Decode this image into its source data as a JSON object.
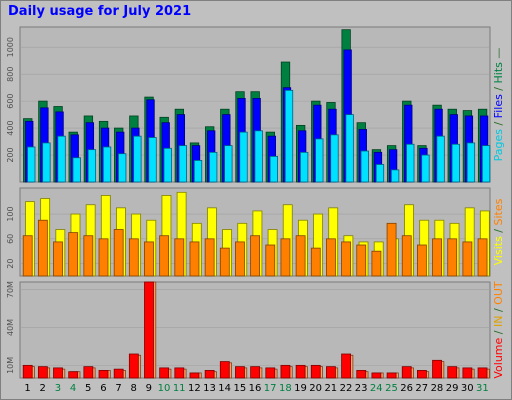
{
  "title": "Daily usage for July 2021",
  "colors": {
    "background": "#c0c0c0",
    "plot_background": "#b8b8b8",
    "hits": "#008040",
    "files": "#0000ff",
    "pages": "#00e0ff",
    "visits": "#ffff00",
    "sites": "#ff8000",
    "kbytes_in": "#ff0000",
    "kbytes_out": "#ffa060",
    "weekday_label": "#000000",
    "weekend_label": "#008040",
    "volume_label": "#ff0000",
    "in_label": "#e0a000",
    "out_label": "#ff8000"
  },
  "chart_data": [
    {
      "type": "bar",
      "title": "",
      "ylabel_parts": [
        {
          "text": "Pages",
          "color": "#00c8e0"
        },
        {
          "text": " / ",
          "color": "#2a6e2a"
        },
        {
          "text": "Files",
          "color": "#0000ff"
        },
        {
          "text": " / ",
          "color": "#2a6e2a"
        },
        {
          "text": "Hits",
          "color": "#008040"
        },
        {
          "text": " —",
          "color": "#2a6e2a"
        }
      ],
      "categories": [
        "1",
        "2",
        "3",
        "4",
        "5",
        "6",
        "7",
        "8",
        "9",
        "10",
        "11",
        "12",
        "13",
        "14",
        "15",
        "16",
        "17",
        "18",
        "19",
        "20",
        "21",
        "22",
        "23",
        "24",
        "25",
        "26",
        "27",
        "28",
        "29",
        "30",
        "31"
      ],
      "ylim": [
        0,
        1150
      ],
      "y_ticks": [
        200,
        400,
        600,
        800,
        1000
      ],
      "series": [
        {
          "name": "Hits",
          "values": [
            470,
            600,
            560,
            370,
            490,
            450,
            400,
            490,
            630,
            480,
            540,
            290,
            410,
            540,
            670,
            670,
            370,
            890,
            420,
            600,
            590,
            1130,
            440,
            240,
            270,
            600,
            270,
            570,
            540,
            530,
            540
          ]
        },
        {
          "name": "Files",
          "values": [
            450,
            550,
            520,
            350,
            440,
            400,
            370,
            400,
            610,
            440,
            500,
            270,
            380,
            500,
            620,
            620,
            340,
            700,
            380,
            570,
            540,
            980,
            390,
            220,
            240,
            570,
            250,
            540,
            500,
            490,
            490
          ]
        },
        {
          "name": "Pages",
          "values": [
            260,
            290,
            340,
            180,
            240,
            260,
            210,
            340,
            330,
            250,
            270,
            160,
            220,
            270,
            370,
            380,
            190,
            680,
            220,
            320,
            350,
            500,
            230,
            130,
            90,
            280,
            200,
            340,
            280,
            290,
            270
          ]
        }
      ]
    },
    {
      "type": "bar",
      "title": "",
      "ylabel_parts": [
        {
          "text": "Visits",
          "color": "#ffff00"
        },
        {
          "text": " / ",
          "color": "#2a6e2a"
        },
        {
          "text": "Sites",
          "color": "#ff8000"
        }
      ],
      "categories": [
        "1",
        "2",
        "3",
        "4",
        "5",
        "6",
        "7",
        "8",
        "9",
        "10",
        "11",
        "12",
        "13",
        "14",
        "15",
        "16",
        "17",
        "18",
        "19",
        "20",
        "21",
        "22",
        "23",
        "24",
        "25",
        "26",
        "27",
        "28",
        "29",
        "30",
        "31"
      ],
      "ylim": [
        0,
        142
      ],
      "y_ticks": [
        20,
        60,
        100
      ],
      "series": [
        {
          "name": "Visits",
          "values": [
            120,
            125,
            75,
            100,
            115,
            130,
            110,
            100,
            90,
            130,
            135,
            85,
            110,
            75,
            85,
            105,
            75,
            115,
            90,
            100,
            110,
            65,
            55,
            55,
            60,
            115,
            90,
            90,
            85,
            110,
            105
          ]
        },
        {
          "name": "Sites",
          "values": [
            65,
            90,
            55,
            70,
            65,
            60,
            75,
            60,
            55,
            65,
            60,
            55,
            60,
            45,
            55,
            65,
            50,
            60,
            65,
            45,
            60,
            55,
            50,
            40,
            85,
            65,
            50,
            60,
            60,
            55,
            60
          ]
        }
      ]
    },
    {
      "type": "bar",
      "title": "",
      "ylabel_parts": [
        {
          "text": "Volume",
          "color": "#ff0000"
        },
        {
          "text": " / ",
          "color": "#2a6e2a"
        },
        {
          "text": "IN",
          "color": "#e0a000"
        },
        {
          "text": " / ",
          "color": "#2a6e2a"
        },
        {
          "text": "OUT",
          "color": "#ff8000"
        }
      ],
      "y_unit": "M",
      "categories": [
        "1",
        "2",
        "3",
        "4",
        "5",
        "6",
        "7",
        "8",
        "9",
        "10",
        "11",
        "12",
        "13",
        "14",
        "15",
        "16",
        "17",
        "18",
        "19",
        "20",
        "21",
        "22",
        "23",
        "24",
        "25",
        "26",
        "27",
        "28",
        "29",
        "30",
        "31"
      ],
      "ylim": [
        0,
        76
      ],
      "y_ticks": [
        10,
        40,
        70
      ],
      "series": [
        {
          "name": "IN",
          "values": [
            10,
            9,
            8,
            5,
            9,
            6,
            7,
            19,
            76,
            8,
            8,
            4,
            6,
            13,
            9,
            9,
            8,
            10,
            10,
            10,
            9,
            19,
            6,
            4,
            4,
            9,
            6,
            14,
            9,
            8,
            8
          ]
        },
        {
          "name": "OUT",
          "values": [
            9,
            8,
            7,
            5,
            8,
            6,
            6,
            18,
            76,
            7,
            7,
            4,
            5,
            12,
            8,
            8,
            7,
            9,
            9,
            9,
            8,
            18,
            5,
            4,
            4,
            8,
            5,
            13,
            8,
            7,
            7
          ]
        }
      ]
    }
  ],
  "weekend_days": [
    "3",
    "4",
    "10",
    "11",
    "17",
    "18",
    "24",
    "25",
    "31"
  ]
}
